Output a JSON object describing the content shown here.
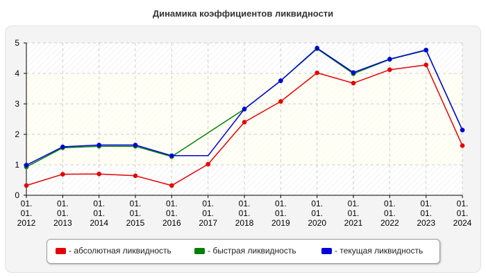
{
  "chart_data": {
    "type": "line",
    "title": "Динамика коэффициентов ликвидности",
    "categories": [
      [
        "01.",
        "01.",
        "2012"
      ],
      [
        "01.",
        "01.",
        "2013"
      ],
      [
        "01.",
        "01.",
        "2014"
      ],
      [
        "01.",
        "01.",
        "2015"
      ],
      [
        "01.",
        "01.",
        "2016"
      ],
      [
        "01.",
        "01.",
        "2017"
      ],
      [
        "01.",
        "01.",
        "2018"
      ],
      [
        "01.",
        "01.",
        "2019"
      ],
      [
        "01.",
        "01.",
        "2020"
      ],
      [
        "01.",
        "01.",
        "2021"
      ],
      [
        "01.",
        "01.",
        "2022"
      ],
      [
        "01.",
        "01.",
        "2023"
      ],
      [
        "01.",
        "01.",
        "2024"
      ]
    ],
    "ylim": [
      0,
      5
    ],
    "yticks": [
      0,
      1,
      2,
      3,
      4,
      5
    ],
    "grid": true,
    "legend_position": "bottom",
    "series": [
      {
        "name": "- абсолютная ликвидность",
        "color": "#e60000",
        "values": [
          0.32,
          0.69,
          0.7,
          0.64,
          0.32,
          1.02,
          2.4,
          3.08,
          4.02,
          3.68,
          4.12,
          4.28,
          1.63
        ],
        "markers": [
          true,
          true,
          true,
          true,
          true,
          true,
          true,
          true,
          true,
          true,
          true,
          true,
          true
        ]
      },
      {
        "name": "- быстрая ликвидность",
        "color": "#008000",
        "values": [
          0.93,
          1.56,
          1.61,
          1.61,
          1.27,
          null,
          2.83,
          3.76,
          4.81,
          3.99,
          4.46,
          4.76,
          2.14
        ],
        "markers": [
          true,
          true,
          true,
          true,
          true,
          false,
          true,
          true,
          true,
          true,
          true,
          true,
          true
        ]
      },
      {
        "name": "- текущая ликвидность",
        "color": "#0000dd",
        "values": [
          0.99,
          1.59,
          1.65,
          1.65,
          1.3,
          1.3,
          2.83,
          3.76,
          4.83,
          4.03,
          4.47,
          4.77,
          2.14
        ],
        "markers": [
          true,
          true,
          true,
          true,
          true,
          false,
          true,
          true,
          true,
          true,
          true,
          true,
          true
        ]
      }
    ]
  }
}
